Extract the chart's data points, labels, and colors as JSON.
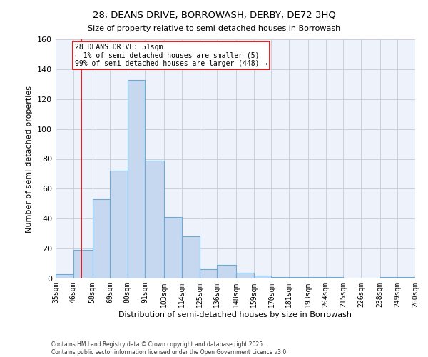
{
  "title_line1": "28, DEANS DRIVE, BORROWASH, DERBY, DE72 3HQ",
  "title_line2": "Size of property relative to semi-detached houses in Borrowash",
  "xlabel": "Distribution of semi-detached houses by size in Borrowash",
  "ylabel": "Number of semi-detached properties",
  "bin_edges": [
    35,
    46,
    58,
    69,
    80,
    91,
    103,
    114,
    125,
    136,
    148,
    159,
    170,
    181,
    193,
    204,
    215,
    226,
    238,
    249,
    260
  ],
  "bar_heights": [
    3,
    19,
    53,
    72,
    133,
    79,
    41,
    28,
    6,
    9,
    4,
    2,
    1,
    1,
    1,
    1,
    0,
    0,
    1,
    1
  ],
  "bar_color": "#c5d8f0",
  "bar_edge_color": "#6aaad4",
  "property_size": 51,
  "annotation_line1": "28 DEANS DRIVE: 51sqm",
  "annotation_line2": "← 1% of semi-detached houses are smaller (5)",
  "annotation_line3": "99% of semi-detached houses are larger (448) →",
  "vline_color": "#cc0000",
  "annotation_box_edgecolor": "#cc0000",
  "ylim": [
    0,
    160
  ],
  "yticks": [
    0,
    20,
    40,
    60,
    80,
    100,
    120,
    140,
    160
  ],
  "grid_color": "#c8d0e0",
  "background_color": "#eef2fa",
  "footer_line1": "Contains HM Land Registry data © Crown copyright and database right 2025.",
  "footer_line2": "Contains public sector information licensed under the Open Government Licence v3.0.",
  "tick_labels": [
    "35sqm",
    "46sqm",
    "58sqm",
    "69sqm",
    "80sqm",
    "91sqm",
    "103sqm",
    "114sqm",
    "125sqm",
    "136sqm",
    "148sqm",
    "159sqm",
    "170sqm",
    "181sqm",
    "193sqm",
    "204sqm",
    "215sqm",
    "226sqm",
    "238sqm",
    "249sqm",
    "260sqm"
  ]
}
